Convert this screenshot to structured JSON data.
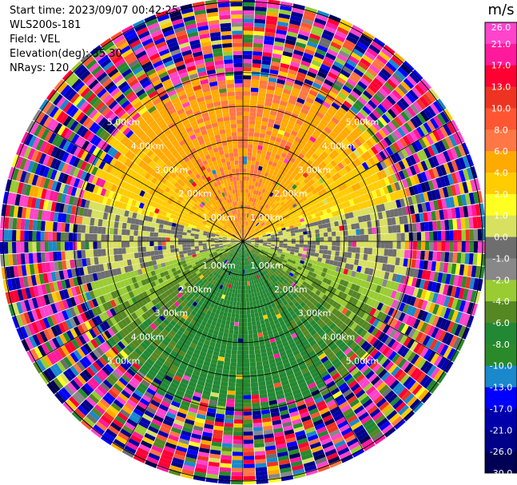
{
  "header": {
    "start_time": "Start time: 2023/09/07 00:42:25",
    "instrument": "WLS200s-181",
    "field": "Field: VEL",
    "elevation": "Elevation(deg): 35.30",
    "nrays": "NRays: 120"
  },
  "chart_data": {
    "type": "ppi",
    "field": "VEL",
    "units": "m/s",
    "nrays": 120,
    "range_rings": [
      {
        "label": "1.00km",
        "km": 1.0
      },
      {
        "label": "2.00km",
        "km": 2.0
      },
      {
        "label": "3.00km",
        "km": 3.0
      },
      {
        "label": "4.00km",
        "km": 4.0
      },
      {
        "label": "5.00km",
        "km": 5.0
      }
    ],
    "max_range_km": 7.1,
    "colorbar": {
      "title": "m/s",
      "levels": [
        26.0,
        21.0,
        17.0,
        13.0,
        10.0,
        8.0,
        6.0,
        4.0,
        2.0,
        1.0,
        0.0,
        -1.0,
        -2.0,
        -4.0,
        -6.0,
        -8.0,
        -10.0,
        -13.0,
        -17.0,
        -21.0,
        -26.0,
        -30.0
      ],
      "tick_labels": [
        "26.0",
        "21.0",
        "17.0",
        "13.0",
        "10.0",
        "8.0",
        "6.0",
        "4.0",
        "2.0",
        "1.0",
        "0.0",
        "-1.0",
        "-2.0",
        "-4.0",
        "-6.0",
        "-8.0",
        "-10.0",
        "-13.0",
        "-17.0",
        "-21.0",
        "-26.0",
        "-30.0"
      ],
      "colors": [
        "#ff44cc",
        "#ff1a9c",
        "#ff0033",
        "#ee3322",
        "#ff5533",
        "#ff7744",
        "#ffaa00",
        "#ffcc00",
        "#ffff22",
        "#d8e060",
        "#6e6e6e",
        "#888888",
        "#99cc33",
        "#558822",
        "#228833",
        "#2a8a2a",
        "#1a88cc",
        "#0000ff",
        "#0000aa",
        "#000088",
        "#000055"
      ]
    },
    "pattern": {
      "near_field_range_km": 4.6,
      "towards_sector": "north (positive, yellow/orange)",
      "away_sector": "south (negative, green)",
      "far_field": "noise"
    }
  }
}
